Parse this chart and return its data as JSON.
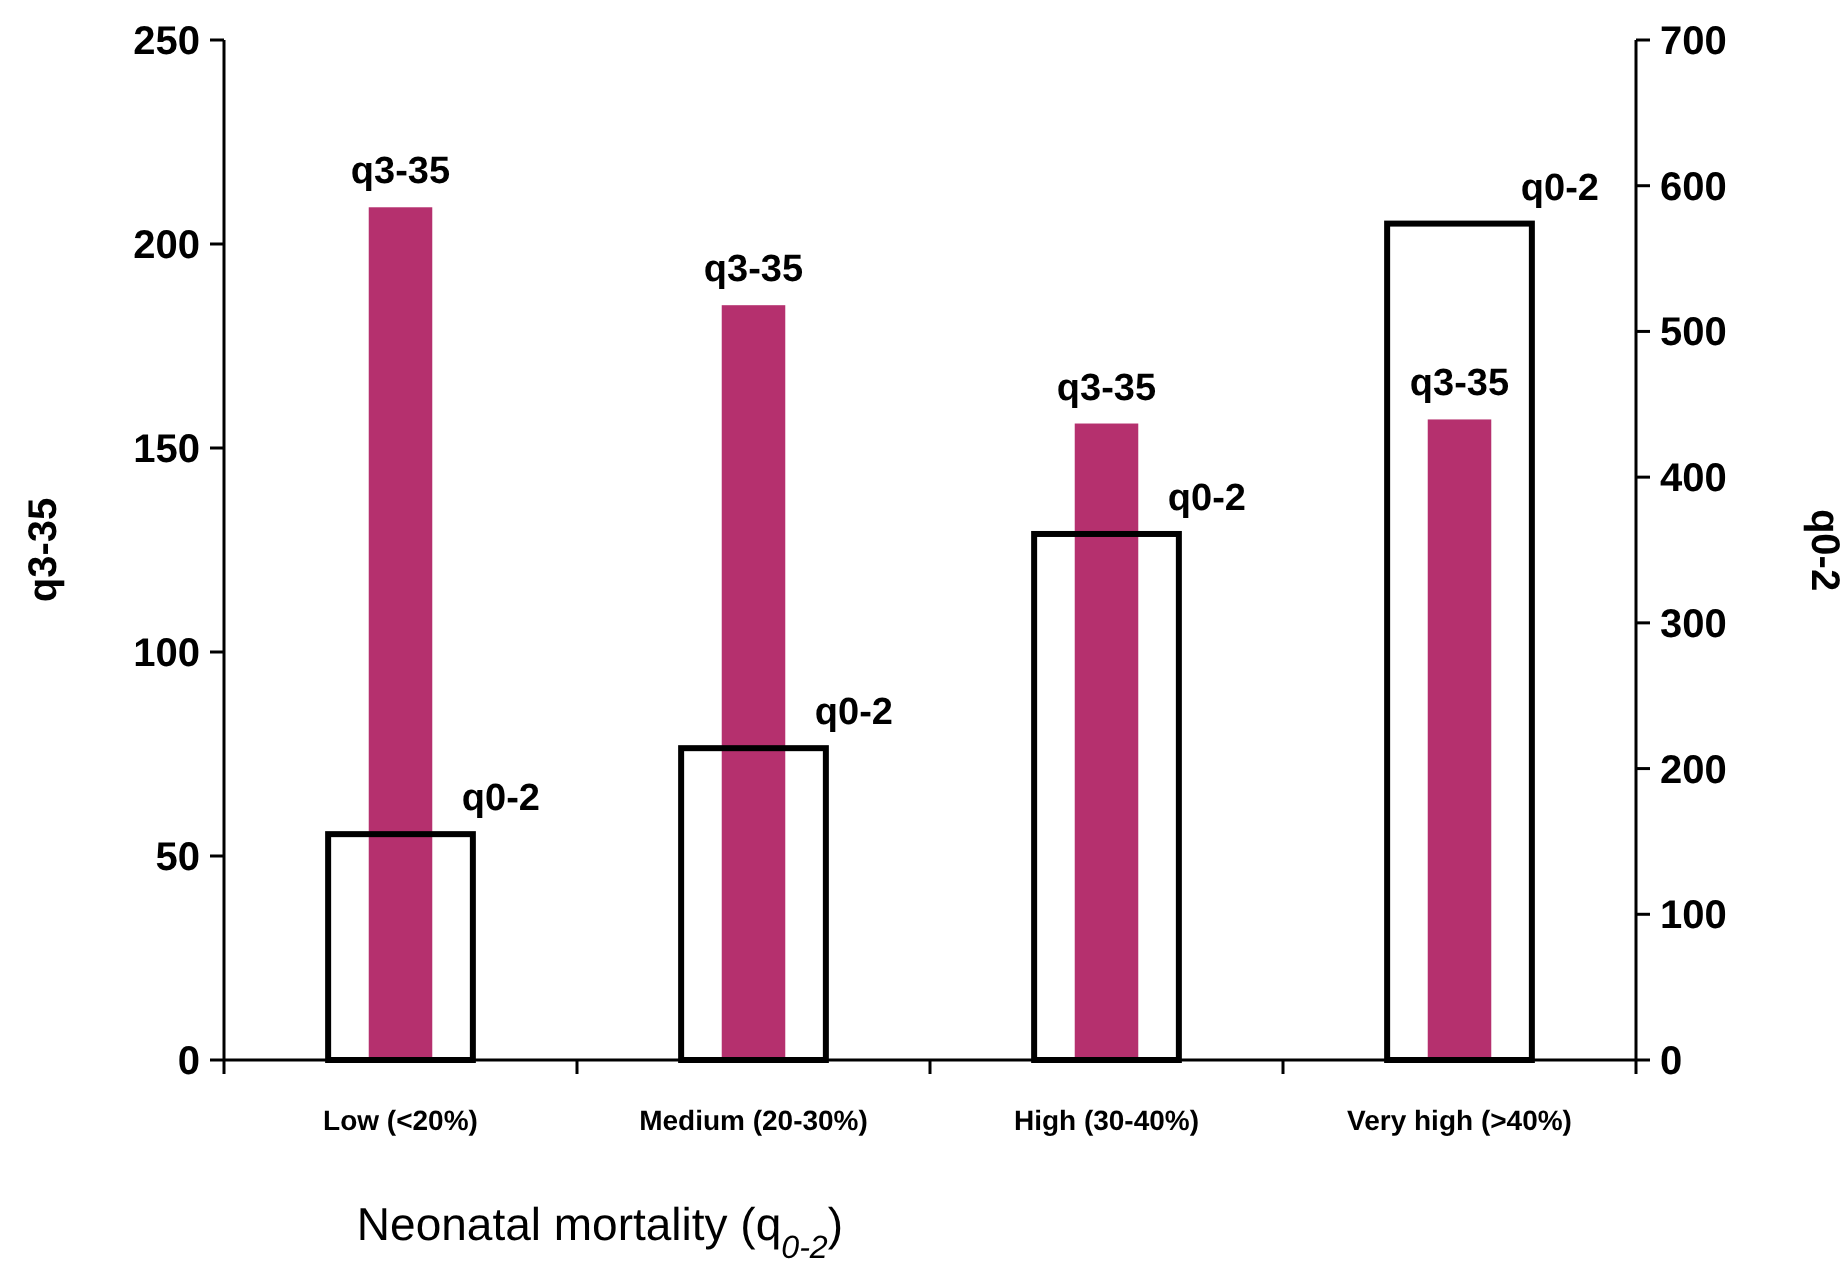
{
  "chart_data": {
    "type": "bar",
    "categories": [
      "Low (<20%)",
      "Medium (20-30%)",
      "High (30-40%)",
      "Very high (>40%)"
    ],
    "series": [
      {
        "name": "q3-35",
        "color": "#b5306e",
        "values": [
          209,
          185,
          156,
          157
        ]
      },
      {
        "name": "q0-2",
        "color": "#000000",
        "axis": "y2",
        "values": [
          155,
          214,
          361,
          574
        ]
      }
    ],
    "xlabel": "Neonatal mortality (q$_{0-2}$)",
    "ylabel": "q3-35",
    "y2label": "q0-2",
    "ylim": [
      0,
      250
    ],
    "yticks": [
      0,
      50,
      100,
      150,
      200,
      250
    ],
    "y2lim": [
      0,
      700
    ],
    "y2ticks": [
      0,
      100,
      200,
      300,
      400,
      500,
      600,
      700
    ]
  }
}
